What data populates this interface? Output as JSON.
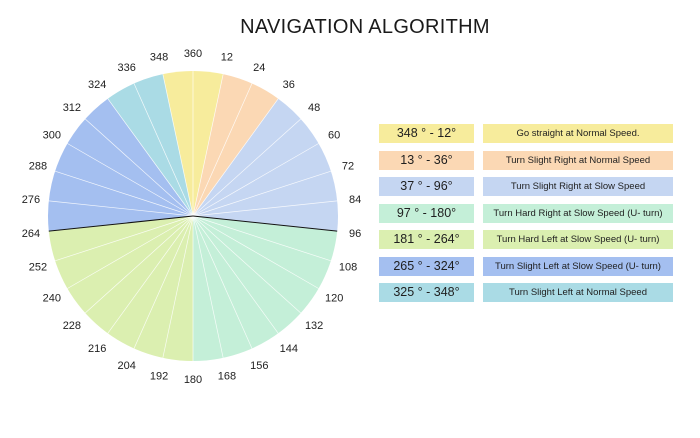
{
  "title": "NAVIGATION ALGORITHM",
  "wheel": {
    "step_degrees": 12,
    "divider_degrees": [
      96,
      264
    ],
    "tick_labels": [
      "360",
      "12",
      "24",
      "36",
      "48",
      "60",
      "72",
      "84",
      "96",
      "108",
      "120",
      "132",
      "144",
      "156",
      "168",
      "180",
      "192",
      "204",
      "216",
      "228",
      "240",
      "252",
      "264",
      "276",
      "288",
      "300",
      "312",
      "324",
      "336",
      "348"
    ],
    "sectors": [
      {
        "from": 348,
        "to": 372,
        "color": "#f7ec9c"
      },
      {
        "from": 12,
        "to": 36,
        "color": "#fbd8b4"
      },
      {
        "from": 36,
        "to": 96,
        "color": "#c5d6f2"
      },
      {
        "from": 96,
        "to": 180,
        "color": "#c4efd8"
      },
      {
        "from": 180,
        "to": 264,
        "color": "#dbefb0"
      },
      {
        "from": 264,
        "to": 324,
        "color": "#a4bff0"
      },
      {
        "from": 324,
        "to": 348,
        "color": "#aadbe5"
      }
    ]
  },
  "legend": [
    {
      "range": "348 ° - 12°",
      "action": "Go straight at Normal Speed.",
      "color": "#f7ec9c"
    },
    {
      "range": "13  ° - 36°",
      "action": "Turn Slight Right at Normal Speed",
      "color": "#fbd8b4"
    },
    {
      "range": "37 ° - 96°",
      "action": "Turn Slight Right at Slow Speed",
      "color": "#c5d6f2"
    },
    {
      "range": "97 ° - 180°",
      "action": "Turn Hard Right at Slow Speed (U- turn)",
      "color": "#c4efd8"
    },
    {
      "range": "181 ° - 264°",
      "action": "Turn Hard Left at Slow Speed (U- turn)",
      "color": "#dbefb0"
    },
    {
      "range": "265 ° - 324°",
      "action": "Turn Slight Left at Slow Speed (U- turn)",
      "color": "#a4bff0"
    },
    {
      "range": "325 ° - 348°",
      "action": "Turn Slight Left at Normal Speed",
      "color": "#aadbe5"
    }
  ]
}
